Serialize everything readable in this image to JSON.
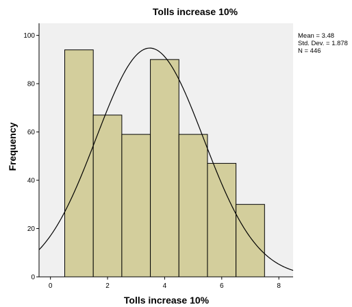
{
  "chart_data": {
    "type": "bar",
    "title": "Tolls increase 10%",
    "xlabel": "Tolls increase 10%",
    "ylabel": "Frequency",
    "bins": [
      {
        "x0": 0.5,
        "x1": 1.5,
        "value": 94
      },
      {
        "x0": 1.5,
        "x1": 2.5,
        "value": 67
      },
      {
        "x0": 2.5,
        "x1": 3.5,
        "value": 59
      },
      {
        "x0": 3.5,
        "x1": 4.5,
        "value": 90
      },
      {
        "x0": 4.5,
        "x1": 5.5,
        "value": 59
      },
      {
        "x0": 5.5,
        "x1": 6.5,
        "value": 47
      },
      {
        "x0": 6.5,
        "x1": 7.5,
        "value": 30
      }
    ],
    "xlim": [
      -0.4,
      8.5
    ],
    "ylim": [
      0,
      105
    ],
    "xticks": [
      "0",
      "2",
      "4",
      "6",
      "8"
    ],
    "yticks": [
      "0",
      "20",
      "40",
      "60",
      "80",
      "100"
    ],
    "normal_curve": {
      "mean": 3.48,
      "std_dev": 1.878,
      "n": 446
    },
    "stats": [
      "Mean = 3.48",
      "Std. Dev. = 1.878",
      "N = 446"
    ],
    "legend_position": "right",
    "grid": false,
    "colors": {
      "plot_background": "#f0f0f0",
      "bar_fill": "#d3ce9c",
      "bar_stroke": "#000000",
      "curve": "#000000"
    }
  }
}
